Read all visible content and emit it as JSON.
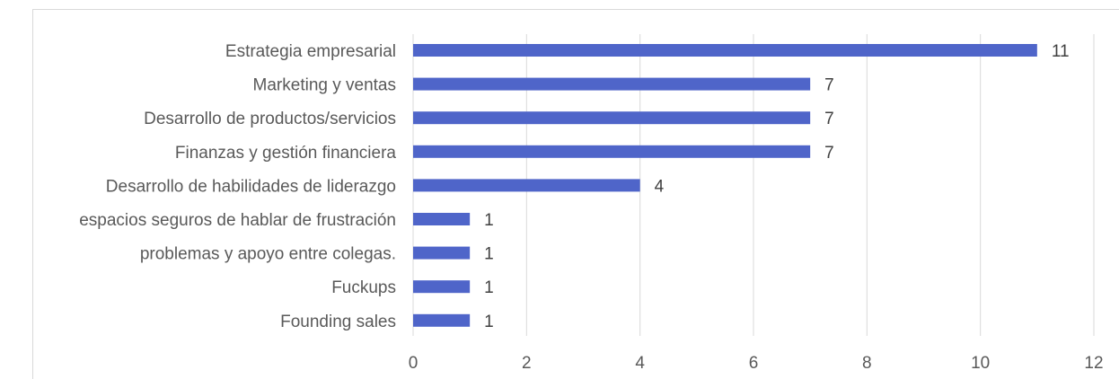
{
  "chart_data": {
    "type": "bar",
    "orientation": "horizontal",
    "categories": [
      "Estrategia empresarial",
      "Marketing y ventas",
      "Desarrollo de productos/servicios",
      "Finanzas y gestión financiera",
      "Desarrollo de habilidades de liderazgo",
      "espacios seguros de hablar de frustración",
      "problemas y apoyo entre colegas.",
      "Fuckups",
      "Founding sales"
    ],
    "values": [
      11,
      7,
      7,
      7,
      4,
      1,
      1,
      1,
      1
    ],
    "xlim": [
      0,
      12
    ],
    "xticks": [
      0,
      2,
      4,
      6,
      8,
      10,
      12
    ],
    "grid": "vertical",
    "legend": "none",
    "data_labels": true,
    "bar_color": "#4f65c9",
    "title": "",
    "xlabel": "",
    "ylabel": ""
  }
}
